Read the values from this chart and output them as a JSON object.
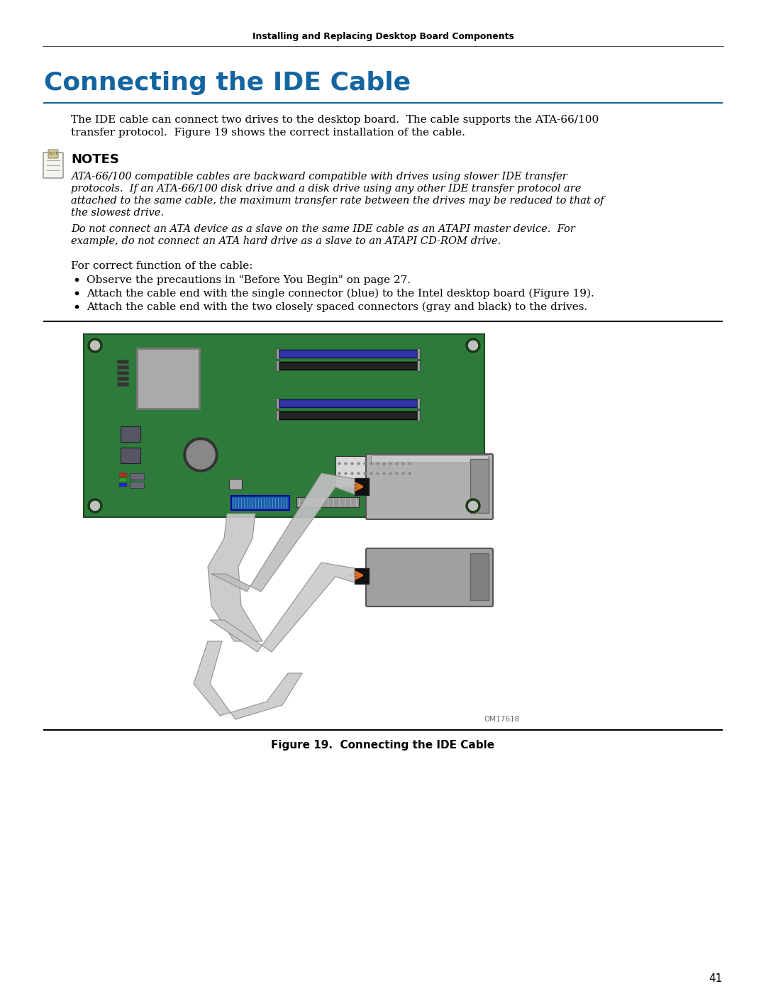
{
  "page_header": "Installing and Replacing Desktop Board Components",
  "section_title": "Connecting the IDE Cable",
  "section_title_color": "#1464A0",
  "body_text_color": "#000000",
  "background_color": "#ffffff",
  "intro_text_1": "The IDE cable can connect two drives to the desktop board.  The cable supports the ATA-66/100",
  "intro_text_2": "transfer protocol.  Figure 19 shows the correct installation of the cable.",
  "notes_heading": "NOTES",
  "notes_italic_1a": "ATA-66/100 compatible cables are backward compatible with drives using slower IDE transfer",
  "notes_italic_1b": "protocols.  If an ATA-66/100 disk drive and a disk drive using any other IDE transfer protocol are",
  "notes_italic_1c": "attached to the same cable, the maximum transfer rate between the drives may be reduced to that of",
  "notes_italic_1d": "the slowest drive.",
  "notes_italic_2a": "Do not connect an ATA device as a slave on the same IDE cable as an ATAPI master device.  For",
  "notes_italic_2b": "example, do not connect an ATA hard drive as a slave to an ATAPI CD-ROM drive.",
  "for_correct_text": "For correct function of the cable:",
  "bullet_1": "Observe the precautions in \"Before You Begin\" on page 27.",
  "bullet_2": "Attach the cable end with the single connector (blue) to the Intel desktop board (Figure 19).",
  "bullet_3": "Attach the cable end with the two closely spaced connectors (gray and black) to the drives.",
  "figure_caption": "Figure 19.  Connecting the IDE Cable",
  "page_number": "41",
  "board_color": "#2D7A3A",
  "ram_slot_blue": "#3333AA",
  "ram_slot_black": "#222222",
  "cable_color": "#C8C8C8",
  "arrow_color": "#E07020",
  "connector_blue": "#1464A0"
}
